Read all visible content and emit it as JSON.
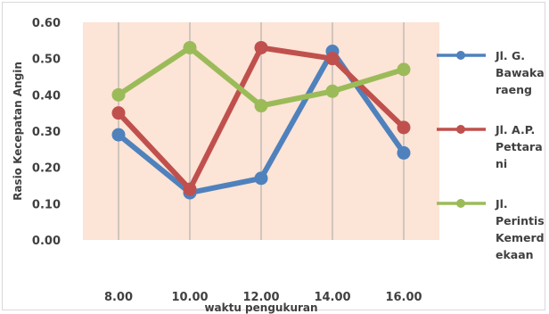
{
  "chart_data": {
    "type": "line",
    "xlabel": "waktu pengukuran",
    "ylabel": "Rasio Kecepatan Angin",
    "categories": [
      "8.00",
      "10.00",
      "12.00",
      "14.00",
      "16.00"
    ],
    "ylim": [
      0,
      0.6
    ],
    "yticks": [
      "0.00",
      "0.10",
      "0.20",
      "0.30",
      "0.40",
      "0.50",
      "0.60"
    ],
    "grid": "vertical",
    "plot_background": "#fce4d6",
    "legend_position": "right",
    "series": [
      {
        "name": "Jl. G. Bawakaraeng",
        "legend_lines": [
          "Jl. G.",
          "Bawaka",
          "raeng"
        ],
        "color": "#4f81bd",
        "values": [
          0.29,
          0.13,
          0.17,
          0.52,
          0.24
        ]
      },
      {
        "name": "Jl. A.P. Pettarani",
        "legend_lines": [
          "Jl. A.P.",
          "Pettara",
          "ni"
        ],
        "color": "#c0504d",
        "values": [
          0.35,
          0.14,
          0.53,
          0.5,
          0.31
        ]
      },
      {
        "name": "Jl. Perintis Kemerdekaan",
        "legend_lines": [
          "Jl.",
          "Perintis",
          "Kemerd",
          "ekaan"
        ],
        "color": "#9bbb59",
        "values": [
          0.4,
          0.53,
          0.37,
          0.41,
          0.47
        ]
      }
    ]
  }
}
